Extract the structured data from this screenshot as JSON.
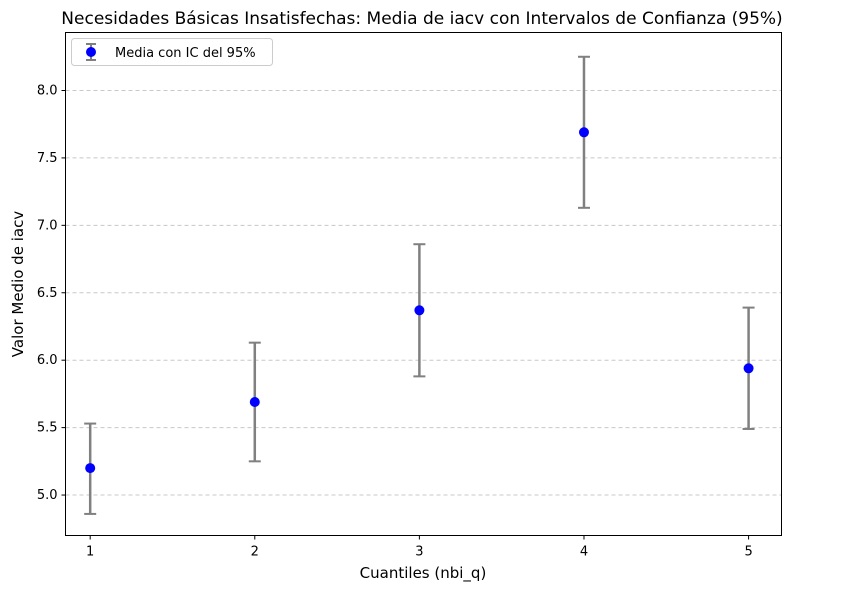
{
  "chart_data": {
    "type": "scatter",
    "title": "Necesidades Básicas Insatisfechas: Media de iacv con Intervalos de Confianza (95%)",
    "xlabel": "Cuantiles (nbi_q)",
    "ylabel": "Valor Medio de iacv",
    "x": [
      1,
      2,
      3,
      4,
      5
    ],
    "series": [
      {
        "name": "Media con IC del 95%",
        "values": [
          5.2,
          5.69,
          6.37,
          7.69,
          5.94
        ],
        "ci_lower": [
          4.86,
          5.25,
          5.88,
          7.13,
          5.49
        ],
        "ci_upper": [
          5.53,
          6.13,
          6.86,
          8.25,
          6.39
        ]
      }
    ],
    "xlim": [
      0.85,
      5.2
    ],
    "ylim": [
      4.7,
      8.43
    ],
    "xticks": [
      "1",
      "2",
      "3",
      "4",
      "5"
    ],
    "yticks": [
      "5.0",
      "5.5",
      "6.0",
      "6.5",
      "7.0",
      "7.5",
      "8.0"
    ],
    "grid": "y, dashed",
    "legend_position": "top-left",
    "colors": {
      "marker": "#0000ff",
      "errorbar": "#808080",
      "grid": "#c8c8c8"
    }
  }
}
